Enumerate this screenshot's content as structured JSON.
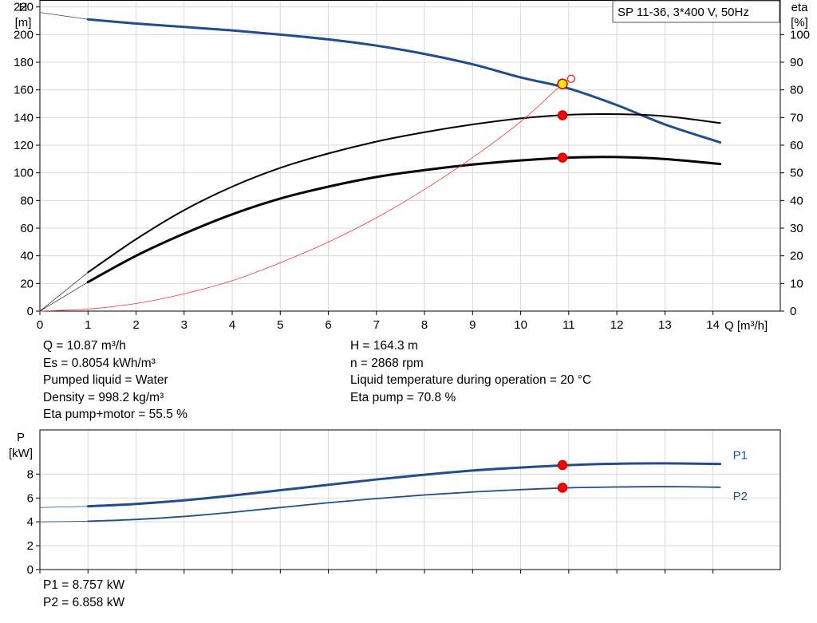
{
  "chart_data": [
    {
      "type": "line",
      "title_box": "SP 11-36, 3*400 V, 50Hz",
      "ylabel_left": "H",
      "ylabel_left_unit": "[m]",
      "ylabel_right": "eta",
      "ylabel_right_unit": "[%]",
      "xlabel": "Q [m³/h]",
      "xlim": [
        0,
        15.4
      ],
      "ylim_left": [
        0,
        225
      ],
      "ylim_right": [
        0,
        112.5
      ],
      "x_ticks": [
        0,
        1,
        2,
        3,
        4,
        5,
        6,
        7,
        8,
        9,
        10,
        11,
        12,
        13,
        14
      ],
      "y_left_ticks": [
        0,
        20,
        40,
        60,
        80,
        100,
        120,
        140,
        160,
        180,
        200,
        220
      ],
      "y_right_ticks": [
        0,
        10,
        20,
        30,
        40,
        50,
        60,
        70,
        80,
        90,
        100
      ],
      "series": [
        {
          "axis": "left",
          "color": "#1f4e8c",
          "width": 3,
          "x": [
            1,
            2,
            3,
            4,
            5,
            6,
            7,
            8,
            9,
            10,
            11,
            12,
            13,
            14.15
          ],
          "y": [
            211,
            208,
            205.5,
            203,
            200,
            196.5,
            192,
            186,
            178.5,
            169,
            161,
            149,
            135,
            122
          ]
        },
        {
          "axis": "left",
          "color": "#1f4e8c",
          "width": 0.8,
          "x": [
            0,
            1
          ],
          "y": [
            216,
            211
          ]
        },
        {
          "axis": "right",
          "color": "#000000",
          "width": 2,
          "x": [
            1,
            2,
            3,
            4,
            5,
            6,
            7,
            8,
            9,
            10,
            11,
            12,
            13,
            14.15
          ],
          "y": [
            14,
            26,
            36.5,
            45,
            51.8,
            57,
            61.3,
            64.7,
            67.5,
            69.7,
            71,
            71.2,
            70.5,
            68
          ]
        },
        {
          "axis": "right",
          "color": "#000000",
          "width": 3,
          "x": [
            1,
            2,
            3,
            4,
            5,
            6,
            7,
            8,
            9,
            10,
            11,
            12,
            13,
            14.15
          ],
          "y": [
            10.5,
            20,
            28,
            35,
            40.7,
            45,
            48.5,
            51,
            53,
            54.5,
            55.5,
            55.7,
            55,
            53.2
          ]
        },
        {
          "axis": "right",
          "color": "#000000",
          "width": 0.6,
          "x": [
            0,
            1
          ],
          "y": [
            0,
            14
          ]
        },
        {
          "axis": "right",
          "color": "#000000",
          "width": 0.6,
          "x": [
            0,
            1
          ],
          "y": [
            0,
            10.5
          ]
        },
        {
          "axis": "left",
          "color": "#ff3030",
          "width": 0.8,
          "x": [
            0,
            1,
            2,
            3,
            4,
            5,
            6,
            7,
            8,
            9,
            10,
            10.87,
            11.05
          ],
          "y": [
            0,
            1.5,
            5.5,
            12.5,
            22,
            35,
            50,
            67.5,
            88,
            111,
            137,
            164.3,
            168
          ]
        }
      ],
      "points": [
        {
          "axis": "left",
          "x": 10.87,
          "y": 164.3,
          "fill": "#ffea00",
          "stroke": "#d40000",
          "r": 6
        },
        {
          "axis": "right",
          "x": 10.87,
          "y": 70.8,
          "fill": "#ff0000",
          "stroke": "#d40000",
          "r": 5.5
        },
        {
          "axis": "right",
          "x": 10.87,
          "y": 55.5,
          "fill": "#ff0000",
          "stroke": "#d40000",
          "r": 5.5
        },
        {
          "axis": "left",
          "x": 11.05,
          "y": 168,
          "fill": "#ffffff",
          "stroke": "#ff3030",
          "r": 4.5
        }
      ]
    },
    {
      "type": "line",
      "ylabel": "P",
      "ylabel_unit": "[kW]",
      "xlim": [
        0,
        15.4
      ],
      "ylim": [
        0,
        11.7
      ],
      "y_ticks": [
        0,
        2,
        4,
        6,
        8
      ],
      "series": [
        {
          "name": "P1",
          "color": "#1f4e8c",
          "width": 3,
          "x": [
            1,
            2,
            3,
            4,
            5,
            6,
            7,
            8,
            9,
            10,
            11,
            12,
            13,
            14.15
          ],
          "y": [
            5.3,
            5.5,
            5.8,
            6.2,
            6.65,
            7.1,
            7.55,
            7.95,
            8.3,
            8.55,
            8.75,
            8.87,
            8.9,
            8.85
          ]
        },
        {
          "name": "P2",
          "color": "#1f4e8c",
          "width": 1.8,
          "x": [
            1,
            2,
            3,
            4,
            5,
            6,
            7,
            8,
            9,
            10,
            11,
            12,
            13,
            14.15
          ],
          "y": [
            4.05,
            4.2,
            4.45,
            4.8,
            5.2,
            5.6,
            5.95,
            6.25,
            6.5,
            6.7,
            6.85,
            6.92,
            6.95,
            6.9
          ]
        },
        {
          "name": "",
          "color": "#1f4e8c",
          "width": 0.8,
          "x": [
            0,
            1
          ],
          "y": [
            5.2,
            5.3
          ]
        },
        {
          "name": "",
          "color": "#1f4e8c",
          "width": 0.8,
          "x": [
            0,
            1
          ],
          "y": [
            4.0,
            4.05
          ]
        }
      ],
      "points": [
        {
          "x": 10.87,
          "y": 8.757,
          "fill": "#ff0000",
          "stroke": "#d40000",
          "r": 5.5
        },
        {
          "x": 10.87,
          "y": 6.858,
          "fill": "#ff0000",
          "stroke": "#d40000",
          "r": 5.5
        }
      ]
    }
  ],
  "info_left": [
    "Q = 10.87 m³/h",
    "Es = 0.8054 kWh/m³",
    "Pumped liquid = Water",
    "Density = 998.2 kg/m³",
    "Eta pump+motor = 55.5 %"
  ],
  "info_right": [
    "H = 164.3 m",
    "n = 2868 rpm",
    "Liquid temperature during operation = 20 °C",
    "Eta pump = 70.8 %"
  ],
  "power_info": [
    "P1 = 8.757 kW",
    "P2 = 6.858 kW"
  ]
}
